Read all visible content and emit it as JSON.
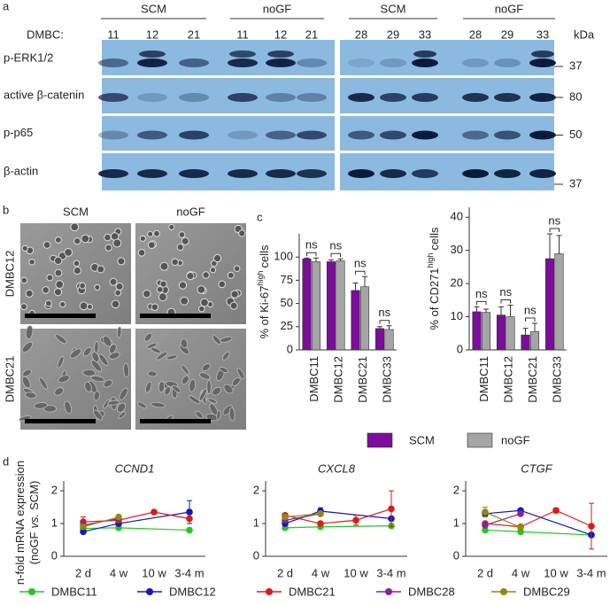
{
  "panel_labels": [
    "a",
    "b",
    "c",
    "d"
  ],
  "blot": {
    "dmbc_label": "DMBC:",
    "kda_label": "kDa",
    "groups": [
      {
        "name": "SCM",
        "lanes": [
          "11",
          "12",
          "21"
        ]
      },
      {
        "name": "noGF",
        "lanes": [
          "11",
          "12",
          "21"
        ]
      },
      {
        "name": "SCM",
        "lanes": [
          "28",
          "29",
          "33"
        ]
      },
      {
        "name": "noGF",
        "lanes": [
          "28",
          "29",
          "33"
        ]
      }
    ],
    "rows": [
      {
        "label": "p-ERK1/2",
        "kda": "37"
      },
      {
        "label": "active β-catenin",
        "kda": "80"
      },
      {
        "label": "p-p65",
        "kda": "50"
      },
      {
        "label": "β-actin",
        "kda": "37"
      }
    ]
  },
  "micrographs": {
    "columns": [
      "SCM",
      "noGF"
    ],
    "rows": [
      "DMBC12",
      "DMBC21"
    ]
  },
  "d_ylabel": {
    "line1": "n-fold mRNA expression",
    "line2": [
      "(noGF",
      "vs.",
      "SCM)"
    ]
  },
  "chart_data": [
    {
      "type": "bar",
      "ylabel": {
        "text": "% of Ki-67",
        "sup": "high",
        "tail": "cells"
      },
      "categories": [
        "DMBC11",
        "DMBC12",
        "DMBC21",
        "DMBC33"
      ],
      "series": [
        {
          "name": "SCM",
          "color": "#7a0d99",
          "values": [
            98,
            95,
            64,
            23
          ],
          "errors": [
            1,
            2,
            8,
            2
          ]
        },
        {
          "name": "noGF",
          "color": "#a5a5a5",
          "values": [
            95,
            96,
            68,
            22
          ],
          "errors": [
            4,
            2,
            11,
            4
          ]
        }
      ],
      "annotations": [
        "ns",
        "ns",
        "ns",
        "ns"
      ],
      "ylim": [
        0,
        125
      ],
      "yticks": [
        0,
        25,
        50,
        75,
        100
      ]
    },
    {
      "type": "bar",
      "ylabel": {
        "text": "% of CD271",
        "sup": "high",
        "tail": "cells"
      },
      "categories": [
        "DMBC11",
        "DMBC12",
        "DMBC21",
        "DMBC33"
      ],
      "series": [
        {
          "name": "SCM",
          "color": "#7a0d99",
          "values": [
            11.5,
            10.5,
            4.5,
            27.5
          ],
          "errors": [
            1.5,
            2.5,
            2,
            7.5
          ]
        },
        {
          "name": "noGF",
          "color": "#a5a5a5",
          "values": [
            11.3,
            10,
            5.5,
            29
          ],
          "errors": [
            1,
            3.5,
            2.5,
            5.5
          ]
        }
      ],
      "annotations": [
        "ns",
        "ns",
        "ns",
        "ns"
      ],
      "ylim": [
        0,
        43
      ],
      "yticks": [
        0,
        10,
        20,
        30,
        40
      ]
    },
    {
      "type": "line",
      "title": "CCND1",
      "categories": [
        "2 d",
        "4 w",
        "10 w",
        "3-4 m"
      ],
      "series": [
        {
          "name": "DMBC11",
          "color": "#22c822",
          "values": [
            0.85,
            0.87,
            null,
            0.8
          ],
          "errors": [
            null,
            null,
            null,
            null
          ]
        },
        {
          "name": "DMBC12",
          "color": "#1515c0",
          "values": [
            0.75,
            1.0,
            null,
            1.35
          ],
          "errors": [
            null,
            null,
            null,
            0.35
          ]
        },
        {
          "name": "DMBC21",
          "color": "#e01818",
          "values": [
            1.05,
            1.1,
            1.35,
            1.15
          ],
          "errors": [
            0.15,
            null,
            null,
            null
          ]
        },
        {
          "name": "DMBC28",
          "color": "#8a1fa0",
          "values": [
            0.95,
            1.15,
            null,
            null
          ],
          "errors": [
            null,
            null,
            null,
            null
          ]
        },
        {
          "name": "DMBC29",
          "color": "#8c8c10",
          "values": [
            0.9,
            1.2,
            null,
            null
          ],
          "errors": [
            null,
            null,
            null,
            null
          ]
        }
      ],
      "ylim": [
        0,
        2.3
      ],
      "yticks": [
        0,
        1,
        2
      ]
    },
    {
      "type": "line",
      "title": "CXCL8",
      "categories": [
        "2 d",
        "4 w",
        "10 w",
        "3-4 m"
      ],
      "series": [
        {
          "name": "DMBC11",
          "color": "#22c822",
          "values": [
            0.87,
            0.9,
            null,
            0.93
          ],
          "errors": [
            null,
            null,
            null,
            null
          ]
        },
        {
          "name": "DMBC12",
          "color": "#1515c0",
          "values": [
            1.0,
            1.38,
            null,
            1.15
          ],
          "errors": [
            null,
            0.1,
            null,
            null
          ]
        },
        {
          "name": "DMBC21",
          "color": "#e01818",
          "values": [
            1.25,
            1.0,
            1.1,
            1.45
          ],
          "errors": [
            null,
            null,
            0.15,
            0.55
          ]
        },
        {
          "name": "DMBC28",
          "color": "#8a1fa0",
          "values": [
            1.1,
            1.3,
            null,
            null
          ],
          "errors": [
            null,
            null,
            null,
            null
          ]
        },
        {
          "name": "DMBC29",
          "color": "#8c8c10",
          "values": [
            1.2,
            1.3,
            null,
            null
          ],
          "errors": [
            null,
            null,
            null,
            null
          ]
        }
      ],
      "ylim": [
        0,
        2.3
      ],
      "yticks": [
        0,
        1,
        2
      ]
    },
    {
      "type": "line",
      "title": "CTGF",
      "categories": [
        "2 d",
        "4 w",
        "10 w",
        "3-4 m"
      ],
      "series": [
        {
          "name": "DMBC11",
          "color": "#22c822",
          "values": [
            0.8,
            0.75,
            null,
            0.65
          ],
          "errors": [
            null,
            null,
            null,
            null
          ]
        },
        {
          "name": "DMBC12",
          "color": "#1515c0",
          "values": [
            1.3,
            1.4,
            null,
            0.65
          ],
          "errors": [
            null,
            null,
            null,
            null
          ]
        },
        {
          "name": "DMBC21",
          "color": "#e01818",
          "values": [
            1.0,
            0.9,
            1.4,
            0.92
          ],
          "errors": [
            null,
            null,
            0.07,
            0.7
          ]
        },
        {
          "name": "DMBC28",
          "color": "#8a1fa0",
          "values": [
            0.95,
            1.3,
            null,
            null
          ],
          "errors": [
            null,
            null,
            null,
            null
          ]
        },
        {
          "name": "DMBC29",
          "color": "#8c8c10",
          "values": [
            1.35,
            0.88,
            null,
            null
          ],
          "errors": [
            0.15,
            null,
            null,
            null
          ]
        }
      ],
      "ylim": [
        0,
        2.3
      ],
      "yticks": [
        0,
        1,
        2
      ]
    }
  ]
}
